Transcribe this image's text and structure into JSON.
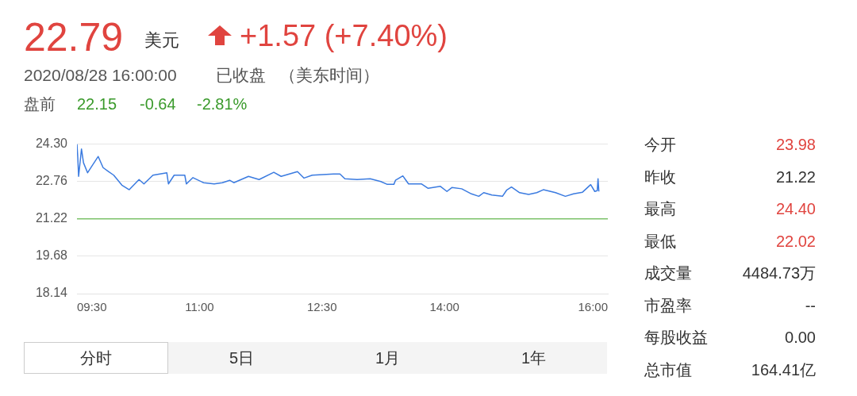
{
  "chart_data": {
    "type": "line",
    "annotations": [
      "22.79",
      "美元",
      "+1.57 (+7.40%)",
      "2020/08/28 16:00:00",
      "已收盘",
      "（美东时间）",
      "盘前",
      "22.15",
      "-0.64",
      "-2.81%",
      "今开",
      "23.98",
      "昨收",
      "21.22",
      "最高",
      "24.40",
      "最低",
      "22.02",
      "成交量",
      "4484.73万",
      "市盈率",
      "--",
      "每股收益",
      "0.00",
      "总市值",
      "164.41亿",
      "分时",
      "5日",
      "1月",
      "1年"
    ],
    "series": [
      {
        "color": "#3b7be0",
        "x": [
          9.5,
          9.51,
          9.52,
          9.555,
          9.58,
          9.63,
          9.69,
          9.76,
          9.82,
          9.885,
          9.95,
          10.05,
          10.14,
          10.26,
          10.32,
          10.43,
          10.6,
          10.62,
          10.69,
          10.82,
          10.84,
          10.92,
          11.05,
          11.18,
          11.28,
          11.37,
          11.42,
          11.6,
          11.73,
          11.91,
          12,
          12.2,
          12.28,
          12.38,
          12.64,
          12.72,
          12.78,
          12.93,
          13.09,
          13.22,
          13.3,
          13.38,
          13.4,
          13.49,
          13.56,
          13.72,
          13.8,
          13.95,
          14.03,
          14.09,
          14.21,
          14.33,
          14.42,
          14.48,
          14.58,
          14.71,
          14.76,
          14.82,
          14.92,
          15.03,
          15.13,
          15.21,
          15.36,
          15.48,
          15.58,
          15.69,
          15.79,
          15.84,
          15.87,
          15.88,
          15.89
        ],
        "values": [
          24.3,
          23.74,
          22.97,
          24.1,
          23.53,
          23.12,
          23.43,
          23.79,
          23.33,
          23.17,
          23.02,
          22.61,
          22.42,
          22.84,
          22.66,
          23.02,
          23.12,
          22.66,
          23.02,
          23.02,
          22.66,
          22.92,
          22.71,
          22.66,
          22.71,
          22.81,
          22.71,
          22.97,
          22.84,
          23.14,
          22.97,
          23.17,
          22.9,
          23.02,
          23.07,
          23.07,
          22.87,
          22.84,
          22.87,
          22.76,
          22.64,
          22.64,
          22.81,
          22.99,
          22.66,
          22.66,
          22.48,
          22.56,
          22.35,
          22.51,
          22.46,
          22.25,
          22.15,
          22.3,
          22.2,
          22.15,
          22.4,
          22.53,
          22.3,
          22.23,
          22.3,
          22.42,
          22.3,
          22.15,
          22.25,
          22.32,
          22.63,
          22.35,
          22.38,
          22.87,
          22.35
        ]
      }
    ],
    "xlim": [
      9.5,
      16
    ],
    "xticks": [
      {
        "value": 9.5,
        "label": "09:30"
      },
      {
        "value": 11,
        "label": "11:00"
      },
      {
        "value": 12.5,
        "label": "12:30"
      },
      {
        "value": 14,
        "label": "14:00"
      },
      {
        "value": 16,
        "label": "16:00"
      }
    ],
    "ylim": [
      18.14,
      24.3
    ],
    "yticks": [
      18.14,
      19.68,
      21.22,
      22.76,
      {
        "value": 24.3,
        "label": "24.30"
      }
    ],
    "ref_lines": [
      {
        "axis": "y",
        "value": 21.22,
        "color": "#7cc26a"
      }
    ],
    "grid": "y",
    "marker": "none",
    "line_style": "solid",
    "legend": false
  }
}
